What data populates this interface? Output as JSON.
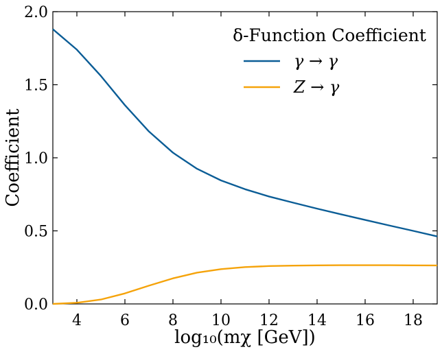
{
  "chart_data": {
    "type": "line",
    "xlabel": "log₁₀(mχ [GeV])",
    "ylabel": "Coefficient",
    "xlim": [
      3,
      19
    ],
    "ylim": [
      0.0,
      2.0
    ],
    "xticks": [
      4,
      6,
      8,
      10,
      12,
      14,
      16,
      18
    ],
    "yticks": [
      0.0,
      0.5,
      1.0,
      1.5,
      2.0
    ],
    "xtick_labels": [
      "4",
      "6",
      "8",
      "10",
      "12",
      "14",
      "16",
      "18"
    ],
    "ytick_labels": [
      "0.0",
      "0.5",
      "1.0",
      "1.5",
      "2.0"
    ],
    "grid": false,
    "legend": {
      "title": "δ-Function Coefficient",
      "placement": "top-right"
    },
    "x": [
      3,
      4,
      5,
      6,
      7,
      8,
      9,
      10,
      11,
      12,
      13,
      14,
      15,
      16,
      17,
      18,
      19
    ],
    "series": [
      {
        "name": "γ → γ",
        "color": "#0b5d96",
        "values": [
          1.88,
          1.74,
          1.56,
          1.36,
          1.18,
          1.035,
          0.925,
          0.845,
          0.785,
          0.735,
          0.693,
          0.652,
          0.613,
          0.575,
          0.537,
          0.5,
          0.462
        ]
      },
      {
        "name": "Z → γ",
        "color": "#f5a30a",
        "values": [
          0.0,
          0.008,
          0.03,
          0.072,
          0.125,
          0.175,
          0.214,
          0.238,
          0.252,
          0.259,
          0.262,
          0.264,
          0.265,
          0.265,
          0.265,
          0.264,
          0.263
        ]
      }
    ]
  }
}
